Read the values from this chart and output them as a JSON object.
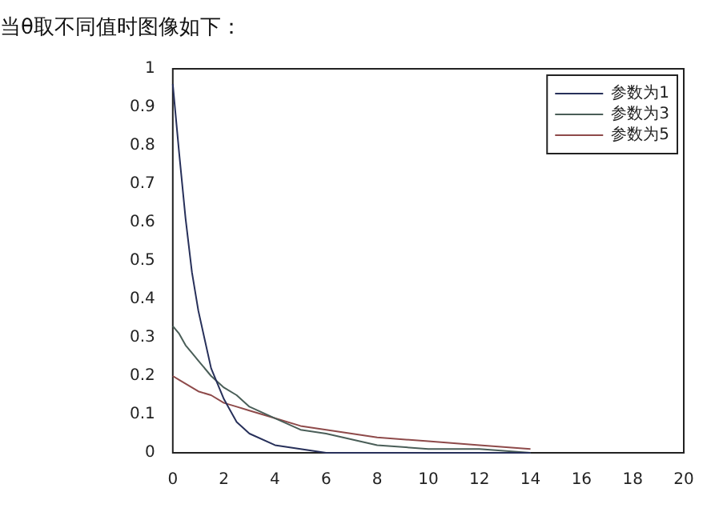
{
  "chart_data": {
    "type": "line",
    "title": "当θ取不同值时图像如下：",
    "x": [
      0,
      0.25,
      0.5,
      0.75,
      1,
      1.5,
      2,
      2.5,
      3,
      4,
      5,
      6,
      8,
      10,
      12,
      14
    ],
    "series": [
      {
        "name": "参数为1",
        "color": "#27305a",
        "values": [
          0.96,
          0.78,
          0.61,
          0.47,
          0.37,
          0.22,
          0.14,
          0.08,
          0.05,
          0.02,
          0.01,
          0,
          0,
          0,
          0,
          0
        ]
      },
      {
        "name": "参数为3",
        "color": "#4a5e58",
        "values": [
          0.33,
          0.31,
          0.28,
          0.26,
          0.24,
          0.2,
          0.17,
          0.15,
          0.12,
          0.09,
          0.06,
          0.05,
          0.02,
          0.01,
          0.01,
          0
        ]
      },
      {
        "name": "参数为5",
        "color": "#8e4a4a",
        "values": [
          0.2,
          0.19,
          0.18,
          0.17,
          0.16,
          0.15,
          0.13,
          0.12,
          0.11,
          0.09,
          0.07,
          0.06,
          0.04,
          0.03,
          0.02,
          0.01
        ]
      }
    ],
    "xlim": [
      0,
      20
    ],
    "xticks": [
      0,
      2,
      4,
      6,
      8,
      10,
      12,
      14,
      16,
      18,
      20
    ],
    "ylim": [
      0,
      1
    ],
    "yticks": [
      0,
      0.1,
      0.2,
      0.3,
      0.4,
      0.5,
      0.6,
      0.7,
      0.8,
      0.9,
      1
    ],
    "grid": false,
    "legend": "top right",
    "marker": "none",
    "line_style": "solid"
  }
}
